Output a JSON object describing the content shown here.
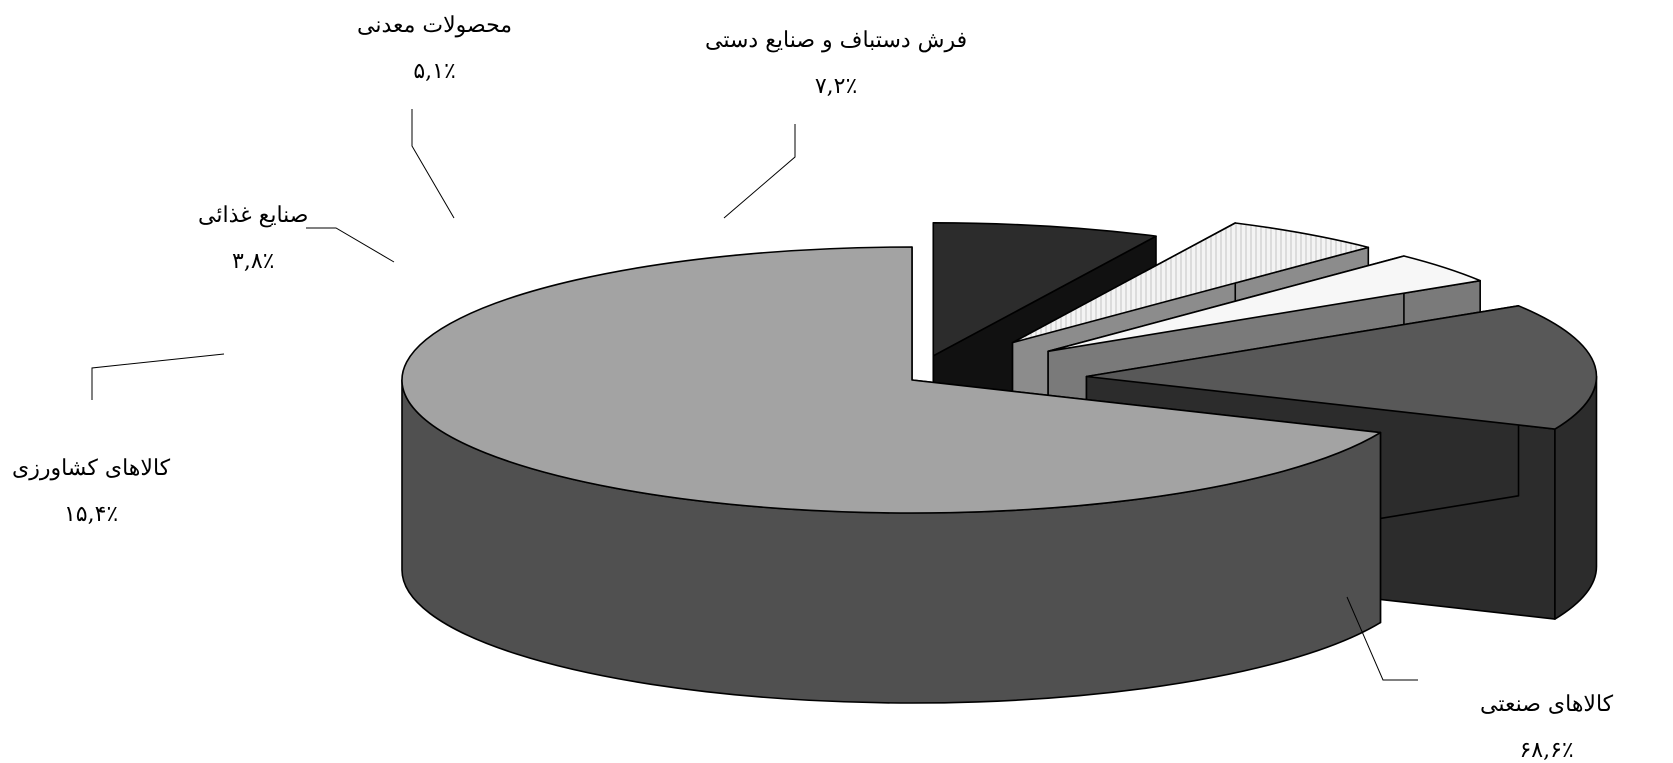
{
  "chart_data": {
    "type": "pie",
    "title": "",
    "style": "exploded 3D pie, grayscale",
    "labels": [
      "کالاهای صنعتی",
      "کالاهای کشاورزی",
      "صنایع غذائی",
      "محصولات معدنی",
      "فرش دستباف و صنایع دستی"
    ],
    "values": [
      68.6,
      15.4,
      3.8,
      5.1,
      7.2
    ],
    "value_labels": [
      "۶۸,۶٪",
      "۱۵,۴٪",
      "۳,۸٪",
      "۵,۱٪",
      "۷,۲٪"
    ],
    "colors": [
      "#a3a3a3",
      "#585858",
      "#f7f7f7",
      "#e6e6e6",
      "#2c2c2c"
    ],
    "side_colors": [
      "#505050",
      "#2c2c2c",
      "#7a7a7a",
      "#8c8c8c",
      "#111111"
    ],
    "legend": "none"
  }
}
